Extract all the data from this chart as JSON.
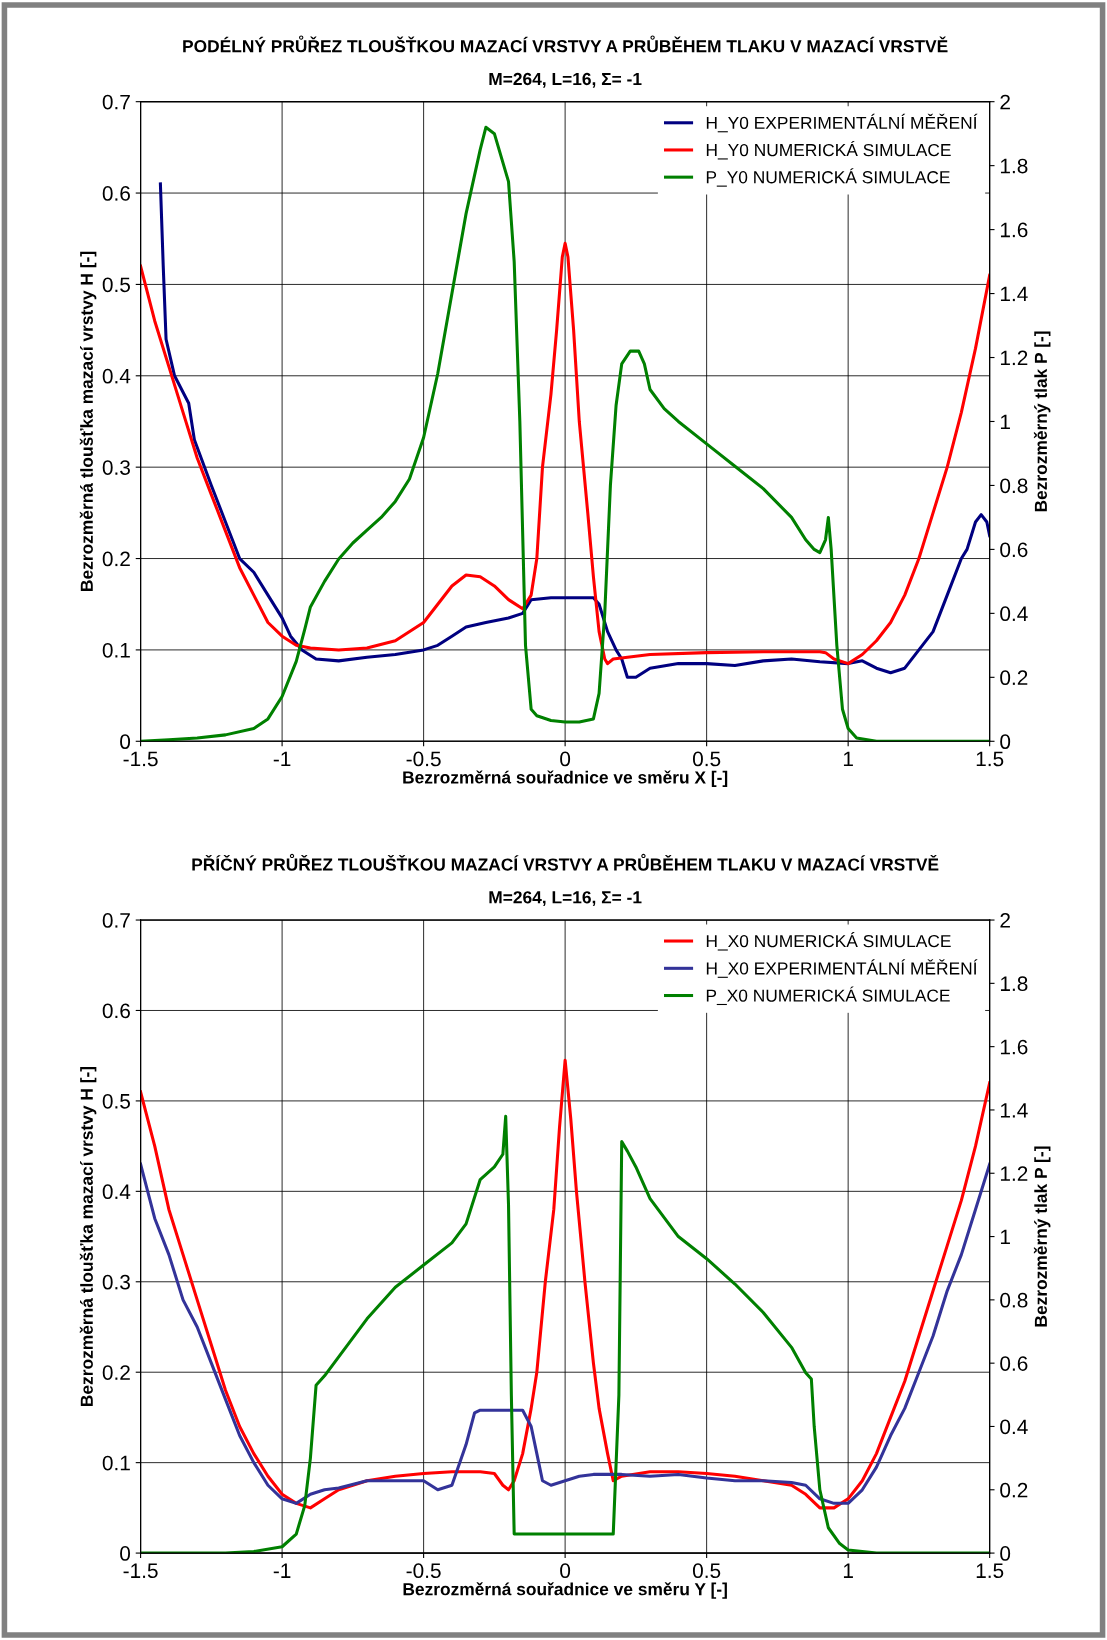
{
  "chart_data": [
    {
      "type": "line",
      "title": "PODÉLNÝ PRŮŘEZ TLOUŠŤKOU MAZACÍ VRSTVY A PRŮBĚHEM TLAKU V MAZACÍ VRSTVĚ",
      "subtitle": "M=264, L=16, Σ= -1",
      "xlabel": "Bezrozměrná souřadnice ve směru X [-]",
      "ylabel": "Bezrozměrná tloušťka mazací vrstvy H [-]",
      "y2label": "Bezrozměrný tlak P [-]",
      "xlim": [
        -1.5,
        1.5
      ],
      "xticks": [
        -1.5,
        -1,
        -0.5,
        0,
        0.5,
        1,
        1.5
      ],
      "ylim": [
        0,
        0.7
      ],
      "yticks": [
        0,
        0.1,
        0.2,
        0.3,
        0.4,
        0.5,
        0.6,
        0.7
      ],
      "y2lim": [
        0,
        2
      ],
      "y2ticks": [
        0,
        0.2,
        0.4,
        0.6,
        0.8,
        1,
        1.2,
        1.4,
        1.6,
        1.8,
        2
      ],
      "grid": true,
      "legend": "top right",
      "series": [
        {
          "name": "H_Y0 EXPERIMENTÁLNÍ MĚŘENÍ",
          "color": "#000080",
          "x": [
            -1.43,
            -1.42,
            -1.41,
            -1.38,
            -1.33,
            -1.31,
            -1.25,
            -1.2,
            -1.15,
            -1.1,
            -1.05,
            -1.0,
            -0.97,
            -0.93,
            -0.88,
            -0.8,
            -0.7,
            -0.6,
            -0.5,
            -0.45,
            -0.4,
            -0.35,
            -0.28,
            -0.2,
            -0.15,
            -0.12,
            -0.05,
            0.05,
            0.1,
            0.12,
            0.15,
            0.18,
            0.2,
            0.22,
            0.25,
            0.3,
            0.4,
            0.5,
            0.6,
            0.7,
            0.8,
            0.9,
            1.0,
            1.05,
            1.1,
            1.15,
            1.2,
            1.25,
            1.3,
            1.35,
            1.4,
            1.42,
            1.45,
            1.47,
            1.49,
            1.5
          ],
          "values": [
            0.61,
            0.52,
            0.44,
            0.4,
            0.37,
            0.33,
            0.28,
            0.24,
            0.2,
            0.185,
            0.16,
            0.135,
            0.115,
            0.1,
            0.09,
            0.088,
            0.092,
            0.095,
            0.1,
            0.105,
            0.115,
            0.125,
            0.13,
            0.135,
            0.14,
            0.155,
            0.157,
            0.157,
            0.157,
            0.15,
            0.12,
            0.1,
            0.09,
            0.07,
            0.07,
            0.08,
            0.085,
            0.085,
            0.083,
            0.088,
            0.09,
            0.087,
            0.085,
            0.088,
            0.08,
            0.075,
            0.08,
            0.1,
            0.12,
            0.16,
            0.2,
            0.21,
            0.24,
            0.248,
            0.24,
            0.225
          ]
        },
        {
          "name": "H_Y0 NUMERICKÁ SIMULACE",
          "color": "#ff0000",
          "x": [
            -1.5,
            -1.45,
            -1.4,
            -1.35,
            -1.3,
            -1.25,
            -1.2,
            -1.15,
            -1.1,
            -1.05,
            -1.0,
            -0.95,
            -0.9,
            -0.8,
            -0.7,
            -0.6,
            -0.5,
            -0.45,
            -0.4,
            -0.35,
            -0.3,
            -0.25,
            -0.2,
            -0.15,
            -0.12,
            -0.1,
            -0.08,
            -0.05,
            -0.03,
            -0.01,
            0.0,
            0.01,
            0.03,
            0.05,
            0.08,
            0.1,
            0.12,
            0.14,
            0.15,
            0.17,
            0.3,
            0.5,
            0.7,
            0.9,
            0.92,
            0.95,
            1.0,
            1.05,
            1.1,
            1.15,
            1.2,
            1.25,
            1.3,
            1.35,
            1.4,
            1.45,
            1.5
          ],
          "values": [
            0.52,
            0.46,
            0.41,
            0.36,
            0.31,
            0.27,
            0.23,
            0.19,
            0.16,
            0.13,
            0.115,
            0.105,
            0.102,
            0.1,
            0.102,
            0.11,
            0.13,
            0.15,
            0.17,
            0.182,
            0.18,
            0.17,
            0.155,
            0.145,
            0.16,
            0.2,
            0.3,
            0.38,
            0.45,
            0.53,
            0.545,
            0.53,
            0.45,
            0.35,
            0.25,
            0.18,
            0.12,
            0.09,
            0.085,
            0.09,
            0.095,
            0.097,
            0.098,
            0.098,
            0.097,
            0.09,
            0.085,
            0.095,
            0.11,
            0.13,
            0.16,
            0.2,
            0.25,
            0.3,
            0.36,
            0.43,
            0.51
          ]
        },
        {
          "name": "P_Y0 NUMERICKÁ SIMULACE",
          "color": "#008000",
          "axis": "y2",
          "x": [
            -1.5,
            -1.4,
            -1.3,
            -1.2,
            -1.1,
            -1.05,
            -1.0,
            -0.95,
            -0.92,
            -0.9,
            -0.85,
            -0.8,
            -0.75,
            -0.7,
            -0.65,
            -0.6,
            -0.55,
            -0.5,
            -0.45,
            -0.4,
            -0.35,
            -0.3,
            -0.28,
            -0.25,
            -0.2,
            -0.18,
            -0.16,
            -0.14,
            -0.12,
            -0.1,
            -0.05,
            0.0,
            0.05,
            0.1,
            0.12,
            0.14,
            0.16,
            0.18,
            0.2,
            0.23,
            0.26,
            0.28,
            0.3,
            0.35,
            0.4,
            0.5,
            0.6,
            0.7,
            0.8,
            0.85,
            0.88,
            0.9,
            0.92,
            0.93,
            0.94,
            0.96,
            0.98,
            1.0,
            1.03,
            1.1,
            1.5
          ],
          "values": [
            0,
            0.005,
            0.01,
            0.02,
            0.04,
            0.07,
            0.14,
            0.25,
            0.35,
            0.42,
            0.5,
            0.57,
            0.62,
            0.66,
            0.7,
            0.75,
            0.82,
            0.95,
            1.15,
            1.4,
            1.65,
            1.85,
            1.92,
            1.9,
            1.75,
            1.5,
            1.0,
            0.3,
            0.1,
            0.08,
            0.065,
            0.06,
            0.06,
            0.07,
            0.15,
            0.4,
            0.8,
            1.05,
            1.18,
            1.22,
            1.22,
            1.18,
            1.1,
            1.04,
            1.0,
            0.93,
            0.86,
            0.79,
            0.7,
            0.63,
            0.6,
            0.59,
            0.63,
            0.7,
            0.6,
            0.3,
            0.1,
            0.04,
            0.01,
            0,
            0
          ]
        }
      ]
    },
    {
      "type": "line",
      "title": "PŘÍČNÝ PRŮŘEZ TLOUŠŤKOU MAZACÍ VRSTVY A PRŮBĚHEM TLAKU V MAZACÍ VRSTVĚ",
      "subtitle": "M=264, L=16, Σ= -1",
      "xlabel": "Bezrozměrná souřadnice ve směru Y [-]",
      "ylabel": "Bezrozměrná tloušťka mazací vrstvy H [-]",
      "y2label": "Bezrozměrný tlak P [-]",
      "xlim": [
        -1.5,
        1.5
      ],
      "xticks": [
        -1.5,
        -1,
        -0.5,
        0,
        0.5,
        1,
        1.5
      ],
      "ylim": [
        0,
        0.7
      ],
      "yticks": [
        0,
        0.1,
        0.2,
        0.3,
        0.4,
        0.5,
        0.6,
        0.7
      ],
      "y2lim": [
        0,
        2
      ],
      "y2ticks": [
        0,
        0.2,
        0.4,
        0.6,
        0.8,
        1,
        1.2,
        1.4,
        1.6,
        1.8,
        2
      ],
      "grid": true,
      "legend": "top right",
      "series": [
        {
          "name": "H_X0 NUMERICKÁ SIMULACE",
          "color": "#ff0000",
          "x": [
            -1.5,
            -1.45,
            -1.4,
            -1.35,
            -1.3,
            -1.25,
            -1.2,
            -1.15,
            -1.1,
            -1.05,
            -1.0,
            -0.95,
            -0.9,
            -0.85,
            -0.8,
            -0.7,
            -0.6,
            -0.5,
            -0.4,
            -0.3,
            -0.25,
            -0.22,
            -0.2,
            -0.18,
            -0.15,
            -0.12,
            -0.1,
            -0.07,
            -0.04,
            -0.02,
            0,
            0.02,
            0.04,
            0.07,
            0.1,
            0.12,
            0.15,
            0.17,
            0.2,
            0.3,
            0.4,
            0.5,
            0.6,
            0.7,
            0.8,
            0.85,
            0.9,
            0.95,
            1.0,
            1.05,
            1.1,
            1.15,
            1.2,
            1.25,
            1.3,
            1.35,
            1.4,
            1.45,
            1.5
          ],
          "values": [
            0.51,
            0.45,
            0.38,
            0.33,
            0.28,
            0.23,
            0.18,
            0.14,
            0.11,
            0.085,
            0.065,
            0.055,
            0.05,
            0.06,
            0.07,
            0.08,
            0.085,
            0.088,
            0.09,
            0.09,
            0.088,
            0.075,
            0.07,
            0.08,
            0.11,
            0.16,
            0.2,
            0.3,
            0.38,
            0.47,
            0.545,
            0.48,
            0.4,
            0.3,
            0.21,
            0.16,
            0.11,
            0.08,
            0.085,
            0.09,
            0.09,
            0.088,
            0.085,
            0.08,
            0.075,
            0.065,
            0.05,
            0.05,
            0.06,
            0.08,
            0.11,
            0.15,
            0.19,
            0.24,
            0.29,
            0.34,
            0.39,
            0.45,
            0.52
          ]
        },
        {
          "name": "H_X0 EXPERIMENTÁLNÍ MĚŘENÍ",
          "color": "#333399",
          "x": [
            -1.5,
            -1.45,
            -1.4,
            -1.35,
            -1.3,
            -1.25,
            -1.2,
            -1.15,
            -1.1,
            -1.05,
            -1.0,
            -0.95,
            -0.9,
            -0.85,
            -0.8,
            -0.7,
            -0.6,
            -0.5,
            -0.45,
            -0.4,
            -0.35,
            -0.32,
            -0.3,
            -0.2,
            -0.15,
            -0.12,
            -0.1,
            -0.08,
            -0.05,
            0,
            0.05,
            0.1,
            0.2,
            0.3,
            0.4,
            0.5,
            0.6,
            0.7,
            0.8,
            0.85,
            0.9,
            0.95,
            1.0,
            1.05,
            1.1,
            1.15,
            1.2,
            1.25,
            1.3,
            1.35,
            1.4,
            1.45,
            1.5
          ],
          "values": [
            0.43,
            0.37,
            0.33,
            0.28,
            0.25,
            0.21,
            0.17,
            0.13,
            0.1,
            0.075,
            0.06,
            0.055,
            0.065,
            0.07,
            0.072,
            0.08,
            0.08,
            0.08,
            0.07,
            0.075,
            0.12,
            0.155,
            0.158,
            0.158,
            0.158,
            0.14,
            0.11,
            0.08,
            0.075,
            0.08,
            0.085,
            0.087,
            0.087,
            0.085,
            0.087,
            0.083,
            0.08,
            0.08,
            0.078,
            0.075,
            0.06,
            0.055,
            0.055,
            0.07,
            0.095,
            0.13,
            0.16,
            0.2,
            0.24,
            0.29,
            0.33,
            0.38,
            0.43
          ]
        },
        {
          "name": "P_X0 NUMERICKÁ SIMULACE",
          "color": "#008000",
          "axis": "y2",
          "x": [
            -1.5,
            -1.2,
            -1.1,
            -1.0,
            -0.95,
            -0.92,
            -0.9,
            -0.88,
            -0.85,
            -0.8,
            -0.7,
            -0.6,
            -0.5,
            -0.4,
            -0.35,
            -0.3,
            -0.25,
            -0.22,
            -0.21,
            -0.2,
            -0.19,
            -0.18,
            -0.1,
            0,
            0.1,
            0.17,
            0.19,
            0.2,
            0.22,
            0.25,
            0.3,
            0.4,
            0.5,
            0.6,
            0.7,
            0.8,
            0.85,
            0.87,
            0.88,
            0.9,
            0.93,
            0.97,
            1.0,
            1.1,
            1.5
          ],
          "values": [
            0,
            0,
            0.005,
            0.02,
            0.06,
            0.15,
            0.3,
            0.53,
            0.56,
            0.62,
            0.74,
            0.84,
            0.91,
            0.98,
            1.04,
            1.18,
            1.22,
            1.26,
            1.38,
            1.1,
            0.5,
            0.06,
            0.06,
            0.06,
            0.06,
            0.06,
            0.5,
            1.3,
            1.27,
            1.22,
            1.12,
            1.0,
            0.93,
            0.85,
            0.76,
            0.65,
            0.57,
            0.55,
            0.4,
            0.2,
            0.08,
            0.03,
            0.01,
            0,
            0
          ]
        }
      ]
    }
  ]
}
